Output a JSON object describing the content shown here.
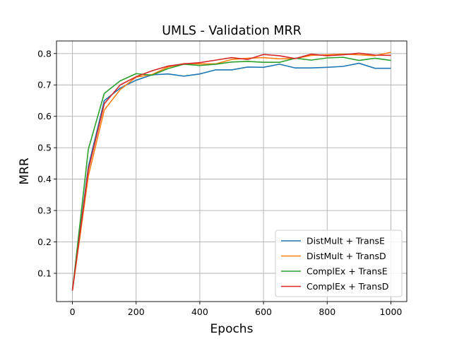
{
  "chart_data": {
    "type": "line",
    "title": "UMLS - Validation MRR",
    "xlabel": "Epochs",
    "ylabel": "MRR",
    "xlim": [
      -50,
      1050
    ],
    "ylim": [
      0.01,
      0.84
    ],
    "xticks": [
      0,
      200,
      400,
      600,
      800,
      1000
    ],
    "yticks": [
      0.1,
      0.2,
      0.3,
      0.4,
      0.5,
      0.6,
      0.7,
      0.8
    ],
    "xtick_labels": [
      "0",
      "200",
      "400",
      "600",
      "800",
      "1000"
    ],
    "ytick_labels": [
      "0.1",
      "0.2",
      "0.3",
      "0.4",
      "0.5",
      "0.6",
      "0.7",
      "0.8"
    ],
    "grid": true,
    "legend_position": "lower-right",
    "x": [
      0,
      50,
      100,
      150,
      200,
      250,
      300,
      350,
      400,
      450,
      500,
      550,
      600,
      650,
      700,
      750,
      800,
      850,
      900,
      950,
      1000
    ],
    "series": [
      {
        "name": "DistMult + TransE",
        "color": "#1f77b4",
        "values": [
          0.045,
          0.44,
          0.65,
          0.69,
          0.715,
          0.732,
          0.735,
          0.728,
          0.735,
          0.748,
          0.748,
          0.757,
          0.756,
          0.766,
          0.754,
          0.754,
          0.756,
          0.759,
          0.769,
          0.753,
          0.753
        ]
      },
      {
        "name": "DistMult + TransD",
        "color": "#ff7f0e",
        "values": [
          0.045,
          0.41,
          0.62,
          0.685,
          0.725,
          0.733,
          0.757,
          0.768,
          0.767,
          0.767,
          0.781,
          0.785,
          0.787,
          0.783,
          0.784,
          0.794,
          0.796,
          0.798,
          0.796,
          0.793,
          0.804
        ]
      },
      {
        "name": "ComplEx + TransE",
        "color": "#2ca02c",
        "values": [
          0.045,
          0.495,
          0.673,
          0.713,
          0.736,
          0.731,
          0.752,
          0.766,
          0.762,
          0.766,
          0.773,
          0.775,
          0.772,
          0.772,
          0.785,
          0.779,
          0.786,
          0.788,
          0.778,
          0.785,
          0.778
        ]
      },
      {
        "name": "ComplEx + TransD",
        "color": "#d62728",
        "values": [
          0.045,
          0.43,
          0.64,
          0.7,
          0.726,
          0.745,
          0.76,
          0.767,
          0.771,
          0.779,
          0.787,
          0.781,
          0.797,
          0.793,
          0.784,
          0.798,
          0.793,
          0.796,
          0.801,
          0.795,
          0.794
        ]
      }
    ]
  }
}
